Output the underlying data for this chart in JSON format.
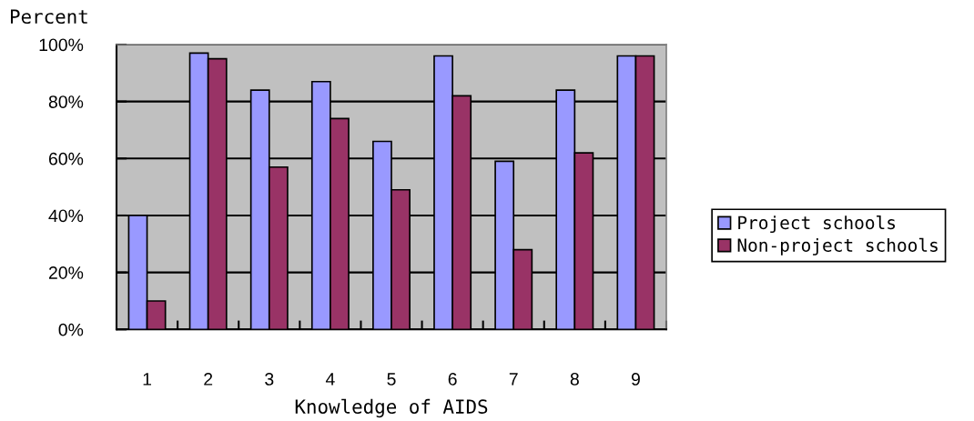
{
  "chart_data": {
    "type": "bar",
    "xlabel": "Knowledge of AIDS",
    "ylabel": "Percent",
    "categories": [
      "1",
      "2",
      "3",
      "4",
      "5",
      "6",
      "7",
      "8",
      "9"
    ],
    "series": [
      {
        "name": "Project schools",
        "color": "#9999ff",
        "values": [
          40,
          97,
          84,
          87,
          66,
          96,
          59,
          84,
          96
        ]
      },
      {
        "name": "Non-project schools",
        "color": "#993366",
        "values": [
          10,
          95,
          57,
          74,
          49,
          82,
          28,
          62,
          96
        ]
      }
    ],
    "ylim": [
      0,
      100
    ],
    "yticks": [
      {
        "value": 0,
        "label": "0%"
      },
      {
        "value": 20,
        "label": "20%"
      },
      {
        "value": 40,
        "label": "40%"
      },
      {
        "value": 60,
        "label": "60%"
      },
      {
        "value": 80,
        "label": "80%"
      },
      {
        "value": 100,
        "label": "100%"
      }
    ],
    "grid": "y",
    "legend": "right"
  }
}
